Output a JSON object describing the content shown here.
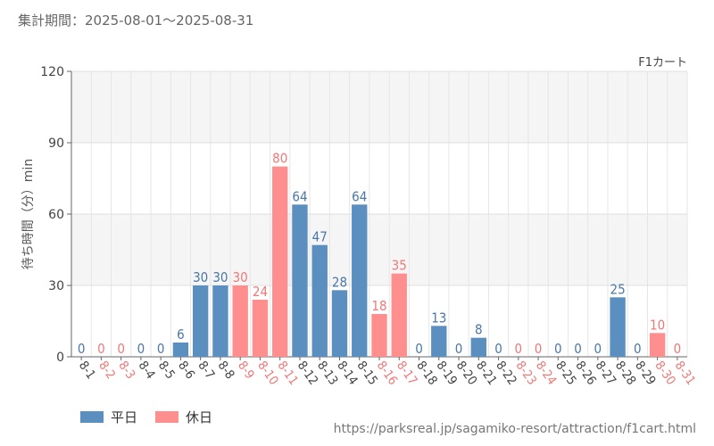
{
  "period_label": "集計期間：2025-08-01～2025-08-31",
  "source_url": "https://parksreal.jp/sagamiko-resort/attraction/f1cart.html",
  "colors": {
    "weekday": "#5b8fbf",
    "holiday": "#ff8f8f",
    "weekday_text": "#4a78a8",
    "holiday_text": "#f07878"
  },
  "chart_data": {
    "type": "bar",
    "series_title": "F1カート",
    "ylabel": "待ち時間（分）min",
    "ylim": [
      0,
      120
    ],
    "yticks": [
      0,
      30,
      60,
      90,
      120
    ],
    "grid": true,
    "legend_position": "bottom-left",
    "legend": [
      {
        "key": "weekday",
        "label": "平日"
      },
      {
        "key": "holiday",
        "label": "休日"
      }
    ],
    "categories": [
      "8-1",
      "8-2",
      "8-3",
      "8-4",
      "8-5",
      "8-6",
      "8-7",
      "8-8",
      "8-9",
      "8-10",
      "8-11",
      "8-12",
      "8-13",
      "8-14",
      "8-15",
      "8-16",
      "8-17",
      "8-18",
      "8-19",
      "8-20",
      "8-21",
      "8-22",
      "8-23",
      "8-24",
      "8-25",
      "8-26",
      "8-27",
      "8-28",
      "8-29",
      "8-30",
      "8-31"
    ],
    "values": [
      0,
      0,
      0,
      0,
      0,
      6,
      30,
      30,
      30,
      24,
      80,
      64,
      47,
      28,
      64,
      18,
      35,
      0,
      13,
      0,
      8,
      0,
      0,
      0,
      0,
      0,
      0,
      25,
      0,
      10,
      0
    ],
    "day_type": [
      "weekday",
      "holiday",
      "holiday",
      "weekday",
      "weekday",
      "weekday",
      "weekday",
      "weekday",
      "holiday",
      "holiday",
      "holiday",
      "weekday",
      "weekday",
      "weekday",
      "weekday",
      "holiday",
      "holiday",
      "weekday",
      "weekday",
      "weekday",
      "weekday",
      "weekday",
      "holiday",
      "holiday",
      "weekday",
      "weekday",
      "weekday",
      "weekday",
      "weekday",
      "holiday",
      "holiday"
    ]
  }
}
